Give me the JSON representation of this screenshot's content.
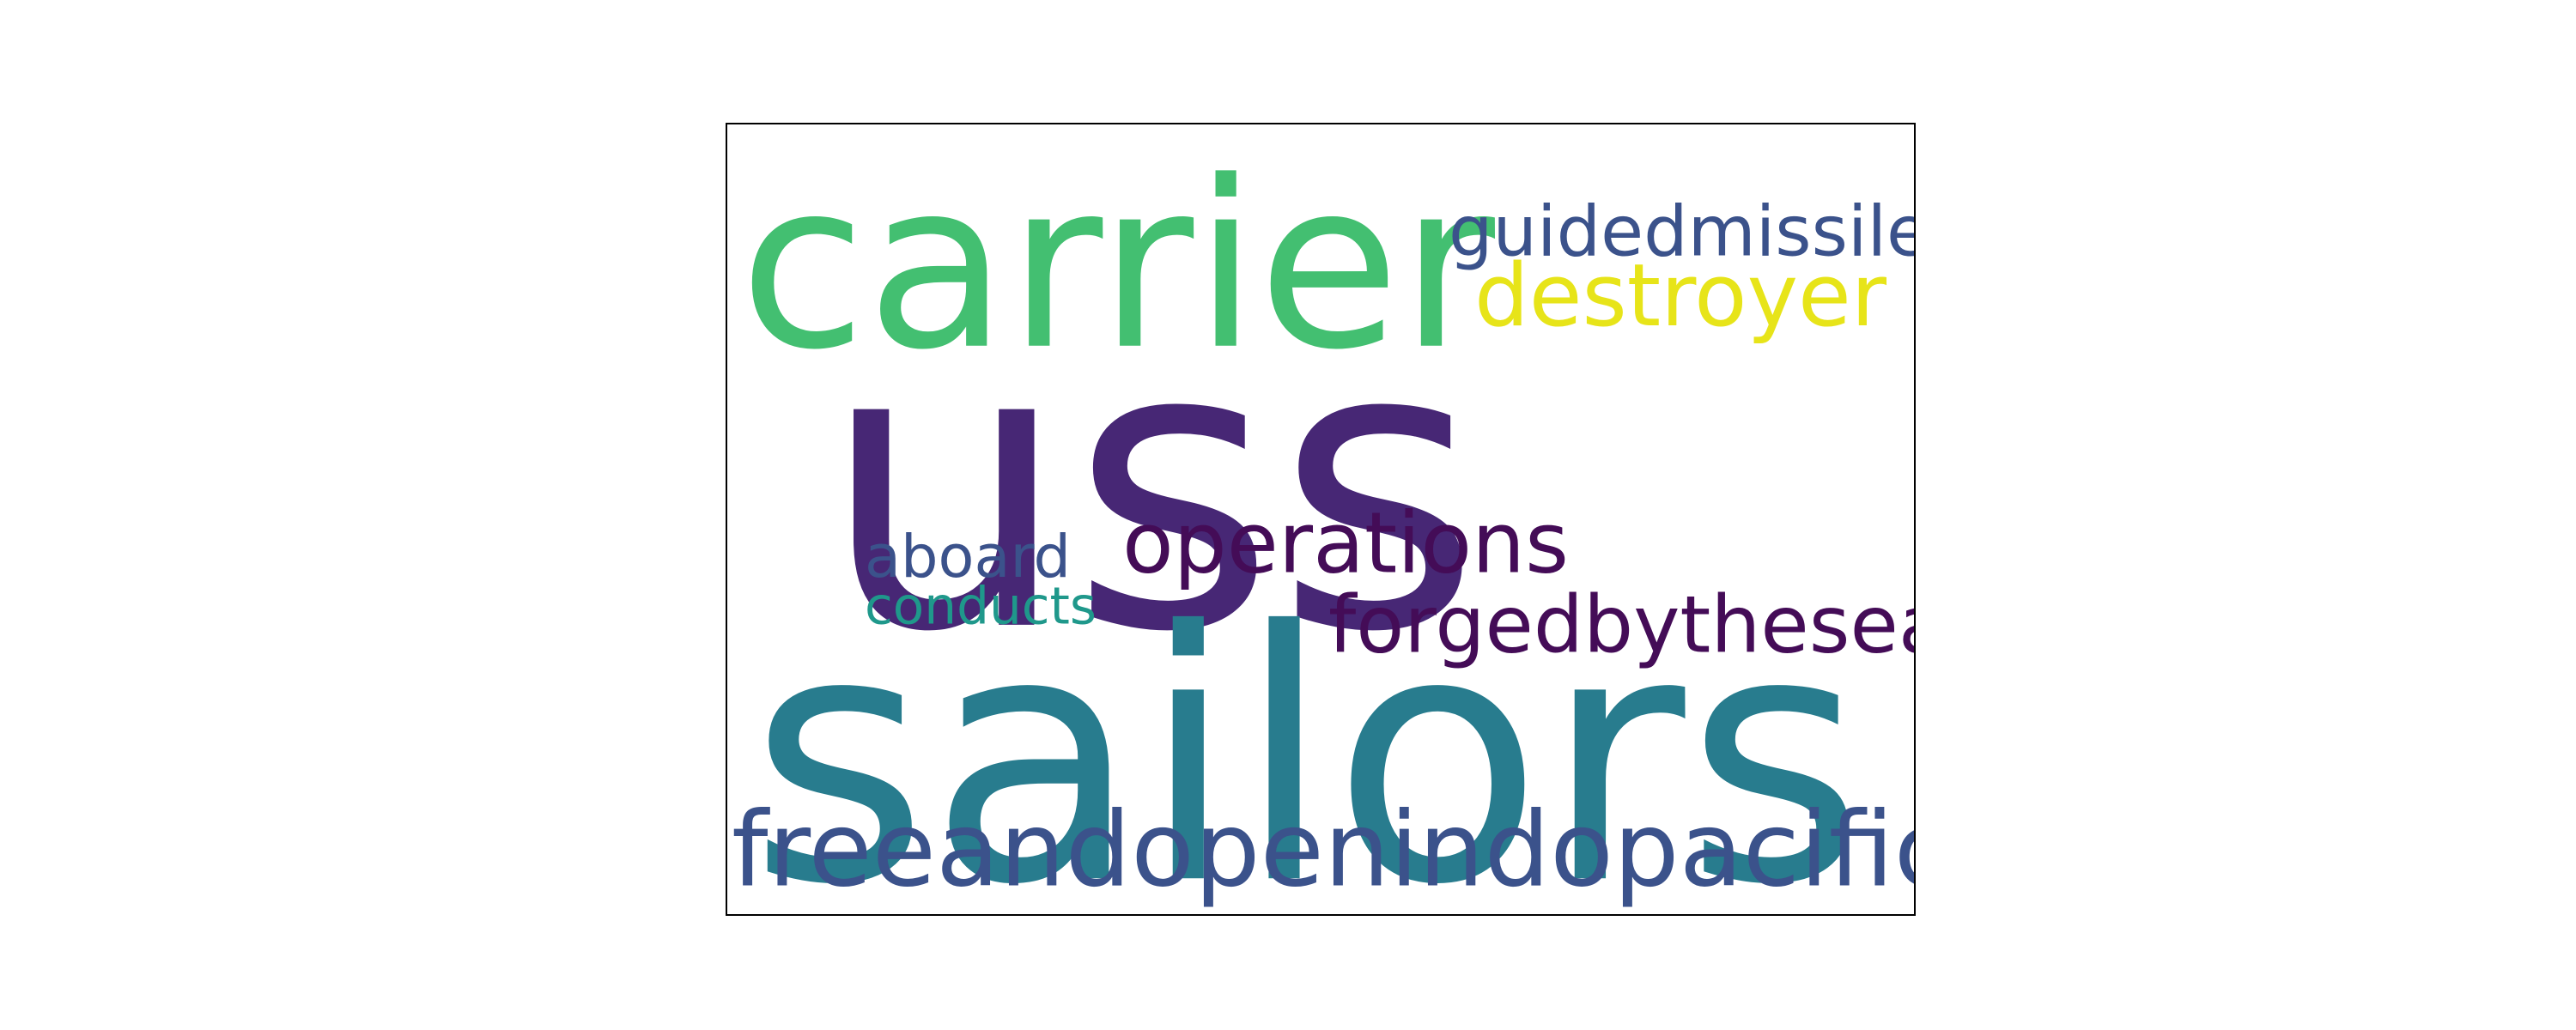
{
  "word_cloud": {
    "words": [
      {
        "id": "carrier",
        "text": "carrier",
        "color": "#43BF71"
      },
      {
        "id": "uss",
        "text": "uss",
        "color": "#472775"
      },
      {
        "id": "guidedmissile",
        "text": "guidedmissile",
        "color": "#3B528B"
      },
      {
        "id": "destroyer",
        "text": "destroyer",
        "color": "#E7E419"
      },
      {
        "id": "operations",
        "text": "operations",
        "color": "#440C57"
      },
      {
        "id": "aboard",
        "text": "aboard",
        "color": "#3B528B"
      },
      {
        "id": "conducts",
        "text": "conducts",
        "color": "#1F988B"
      },
      {
        "id": "forgedbythesea",
        "text": "forgedbythesea",
        "color": "#440C57"
      },
      {
        "id": "sailors",
        "text": "sailors",
        "color": "#287C8E"
      },
      {
        "id": "freeandopenindopacific",
        "text": "freeandopenindopacific",
        "color": "#3B528B"
      }
    ]
  }
}
